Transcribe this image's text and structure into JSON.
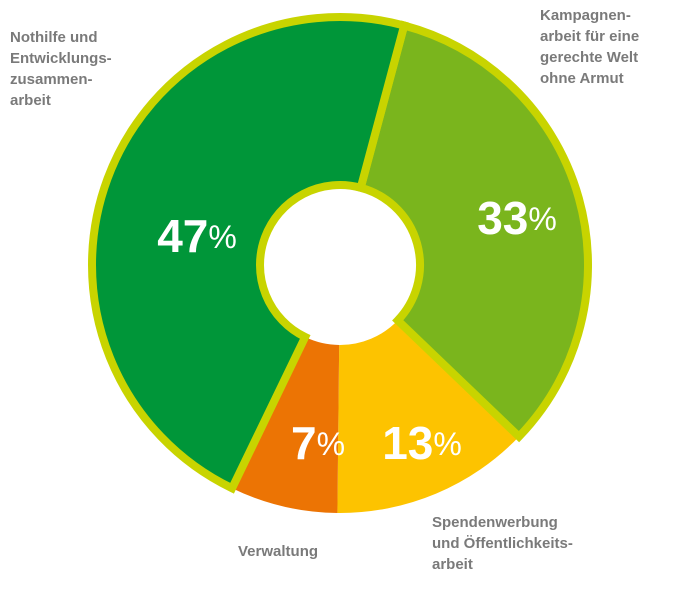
{
  "chart_data": {
    "type": "donut",
    "categories": [
      "Kampagnen-\narbeit für eine\ngerechte Welt\nohne Armut",
      "Spendenwerbung\nund Öffentlichkeits-\narbeit",
      "Verwaltung",
      "Nothilfe und\nEntwicklungs-\nzusammen-\narbeit"
    ],
    "values": [
      33,
      13,
      7,
      47
    ],
    "value_labels": [
      "33%",
      "13%",
      "7%",
      "47%"
    ],
    "colors": [
      "#7ab51d",
      "#fdc300",
      "#ec7404",
      "#009639"
    ],
    "outlined": [
      true,
      false,
      false,
      true
    ],
    "outline_color": "#c8d400"
  }
}
